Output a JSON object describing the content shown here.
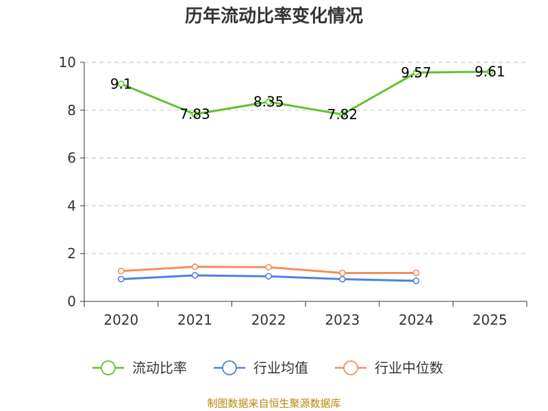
{
  "chart_data": {
    "type": "line",
    "title": "历年流动比率变化情况",
    "categories": [
      "2020",
      "2021",
      "2022",
      "2023",
      "2024",
      "2025"
    ],
    "series": [
      {
        "name": "流动比率",
        "color": "#5cc42b",
        "values": [
          9.1,
          7.83,
          8.35,
          7.82,
          9.57,
          9.61
        ],
        "labels": [
          "9.1",
          "7.83",
          "8.35",
          "7.82",
          "9.57",
          "9.61"
        ],
        "show_labels": true
      },
      {
        "name": "行业均值",
        "color": "#4f7fde",
        "values": [
          0.93,
          1.09,
          1.05,
          0.93,
          0.86,
          null
        ],
        "show_labels": false
      },
      {
        "name": "行业中位数",
        "color": "#f28e5c",
        "values": [
          1.27,
          1.45,
          1.43,
          1.19,
          1.19,
          null
        ],
        "show_labels": false
      }
    ],
    "ylim": [
      0,
      10
    ],
    "yticks": [
      "0",
      "2",
      "4",
      "6",
      "8",
      "10"
    ],
    "ytick_values": [
      0,
      2,
      4,
      6,
      8,
      10
    ],
    "grid": true,
    "legend_position": "bottom"
  },
  "source_text": "制图数据来自恒生聚源数据库"
}
